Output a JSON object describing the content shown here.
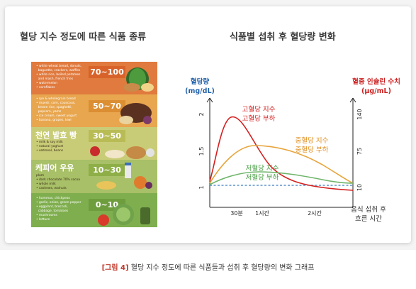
{
  "left_panel": {
    "title": "혈당 지수 정도에 따른 식품 종류",
    "bands": [
      {
        "range": "70~100",
        "items": [
          "• white wheat bread, donuts,",
          "  baguette, crackers, waffles",
          "• white rice, boiled potatoes",
          "  and mash, french fries",
          "• watermelon",
          "• cornflakes"
        ],
        "subtitle": "",
        "bg": "#e07a3e",
        "badge": "#d8632a"
      },
      {
        "range": "50~70",
        "items": [
          "• rye & wholegrain bread",
          "• muesli, corn, couscous,",
          "  brown rice, spaghetti,",
          "  popcorn, yams",
          "• ice cream, sweet yogurt",
          "• banana, grapes, kiwi"
        ],
        "subtitle": "",
        "bg": "#e8a64f",
        "badge": "#dc8e32"
      },
      {
        "range": "30~50",
        "items": [
          "• milk & soy milk",
          "• natural yoghurt",
          "• oatmeal, beans"
        ],
        "subtitle": "천연 발효 빵",
        "bg": "#c9cc77",
        "badge": "#b9bc55"
      },
      {
        "range": "10~30",
        "items": [
          "plum",
          "• dark chocolate 70% cocoa",
          "• whole milk",
          "• cashews, walnuts"
        ],
        "subtitle": "케피어 우유",
        "bg": "#a8c067",
        "badge": "#8eae47"
      },
      {
        "range": "0~10",
        "items": [
          "• hummus, chickpeas",
          "• garlic, onion, green pepper",
          "• eggplant, broccoli,",
          "  cabbage, tomatoes",
          "• mushrooms",
          "• lettuce"
        ],
        "subtitle": "",
        "bg": "#7fae4e",
        "badge": "#6e9d3e"
      }
    ]
  },
  "chart_data": {
    "type": "line",
    "title": "식품별 섭취 후 혈당량 변화",
    "ylabel_left": "혈당량\n(mg/dL)",
    "ylabel_right": "혈중 인슐린 수치\n(μg/mL)",
    "xlabel": "음식 섭취 후\n흐른 시간",
    "x_ticks": [
      "30분",
      "1시간",
      "2시간"
    ],
    "y_left_ticks": [
      "1",
      "1.5",
      "2"
    ],
    "y_right_ticks": [
      "10",
      "75",
      "140"
    ],
    "series": [
      {
        "name": "고혈당 지수\n고혈당 부하",
        "color": "#d42020"
      },
      {
        "name": "중혈당 지수\n중혈당 부하",
        "color": "#e7a43a"
      },
      {
        "name": "저혈당 지수\n저혈당 부하",
        "color": "#6fb56b"
      }
    ],
    "baseline": {
      "style": "dashed",
      "color": "#3a7dc0"
    },
    "grid": false
  },
  "caption": {
    "tag": "[그림 4]",
    "text": "혈당 지수 정도에 따른 식품들과 섭취 후 혈당량의 변화 그래프"
  }
}
